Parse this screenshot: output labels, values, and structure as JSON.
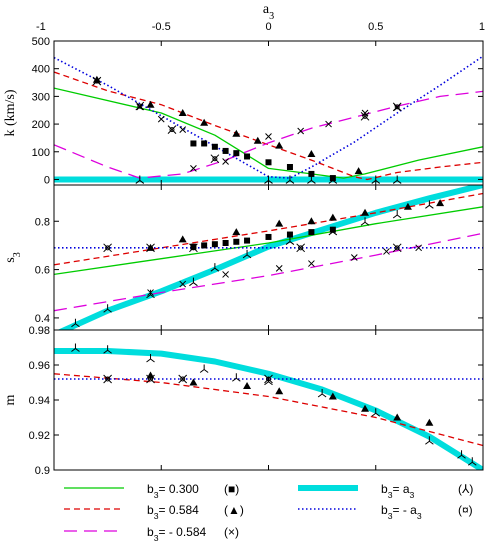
{
  "chart_data": {
    "type": "line",
    "top_axis": {
      "label": "a",
      "label_sub": "3",
      "ticks": [
        "-1",
        "-0.5",
        "0",
        "0.5",
        "1"
      ],
      "xlim": [
        -1,
        1
      ]
    },
    "panels": [
      {
        "ylabel": "k  (km/s)",
        "ylim": [
          -20,
          500
        ],
        "yticks": [
          0,
          100,
          200,
          300,
          400,
          500
        ],
        "ytick_labels": [
          "0",
          "100",
          "200",
          "300",
          "400",
          "500"
        ],
        "lines": [
          {
            "series": "s1",
            "points": [
              [
                -1,
                330
              ],
              [
                -0.5,
                240
              ],
              [
                -0.25,
                160
              ],
              [
                0,
                40
              ],
              [
                0.2,
                20
              ],
              [
                0.35,
                5
              ],
              [
                0.45,
                20
              ],
              [
                0.7,
                70
              ],
              [
                1,
                118
              ]
            ]
          },
          {
            "series": "s2",
            "points": [
              [
                -1,
                388
              ],
              [
                -0.75,
                320
              ],
              [
                -0.5,
                270
              ],
              [
                -0.25,
                195
              ],
              [
                0,
                125
              ],
              [
                0.2,
                70
              ],
              [
                0.3,
                40
              ],
              [
                0.4,
                10
              ],
              [
                0.46,
                0
              ],
              [
                0.6,
                25
              ],
              [
                0.8,
                45
              ],
              [
                1,
                62
              ]
            ]
          },
          {
            "series": "s3",
            "points": [
              [
                -1,
                125
              ],
              [
                -0.75,
                45
              ],
              [
                -0.6,
                5
              ],
              [
                -0.4,
                20
              ],
              [
                -0.2,
                70
              ],
              [
                0,
                132
              ],
              [
                0.2,
                185
              ],
              [
                0.4,
                225
              ],
              [
                0.6,
                265
              ],
              [
                0.8,
                300
              ],
              [
                1,
                318
              ]
            ]
          },
          {
            "series": "s4",
            "points": [
              [
                -1,
                0
              ],
              [
                1,
                0
              ]
            ]
          },
          {
            "series": "s5",
            "points": [
              [
                -1,
                440
              ],
              [
                -0.75,
                340
              ],
              [
                -0.5,
                230
              ],
              [
                -0.25,
                120
              ],
              [
                0,
                10
              ],
              [
                0.1,
                5
              ],
              [
                0.2,
                45
              ],
              [
                0.4,
                135
              ],
              [
                0.6,
                240
              ],
              [
                0.8,
                340
              ],
              [
                1,
                445
              ]
            ]
          }
        ],
        "markers": [
          {
            "series": "s1",
            "points": [
              [
                -0.35,
                130
              ],
              [
                -0.3,
                130
              ],
              [
                -0.25,
                118
              ],
              [
                -0.2,
                103
              ],
              [
                -0.15,
                95
              ],
              [
                -0.1,
                83
              ],
              [
                0,
                62
              ],
              [
                0.1,
                45
              ],
              [
                0.2,
                20
              ],
              [
                0.3,
                5
              ]
            ]
          },
          {
            "series": "s2",
            "points": [
              [
                -0.8,
                360
              ],
              [
                -0.55,
                270
              ],
              [
                -0.4,
                240
              ],
              [
                -0.3,
                205
              ],
              [
                -0.15,
                165
              ],
              [
                -0.05,
                140
              ],
              [
                0.05,
                122
              ],
              [
                0.2,
                92
              ],
              [
                0.42,
                30
              ]
            ]
          },
          {
            "series": "s3",
            "points": [
              [
                -0.8,
                355
              ],
              [
                -0.6,
                262
              ],
              [
                -0.5,
                218
              ],
              [
                -0.4,
                180
              ],
              [
                -0.35,
                40
              ],
              [
                -0.2,
                65
              ],
              [
                0,
                155
              ],
              [
                0.15,
                175
              ],
              [
                0.28,
                200
              ],
              [
                0.45,
                240
              ],
              [
                0.6,
                260
              ]
            ]
          },
          {
            "series": "s4",
            "points": [
              [
                -0.6,
                0
              ],
              [
                0,
                0
              ],
              [
                0.1,
                0
              ],
              [
                0.2,
                0
              ],
              [
                0.3,
                0
              ],
              [
                0.5,
                0
              ],
              [
                0.6,
                0
              ]
            ]
          },
          {
            "series": "s5",
            "points": [
              [
                -0.8,
                355
              ],
              [
                -0.6,
                265
              ],
              [
                -0.45,
                180
              ],
              [
                -0.25,
                75
              ],
              [
                0.45,
                228
              ],
              [
                0.6,
                262
              ]
            ]
          }
        ]
      },
      {
        "ylabel": "s",
        "ylabel_sub": "3",
        "ylim": [
          0.35,
          0.95
        ],
        "yticks": [
          0.4,
          0.6,
          0.8
        ],
        "ytick_labels": [
          "0.4",
          "0.6",
          "0.8"
        ],
        "lines": [
          {
            "series": "s1",
            "points": [
              [
                -1,
                0.58
              ],
              [
                -0.5,
                0.645
              ],
              [
                0,
                0.71
              ],
              [
                0.5,
                0.79
              ],
              [
                1,
                0.86
              ]
            ]
          },
          {
            "series": "s2",
            "points": [
              [
                -1,
                0.62
              ],
              [
                -0.5,
                0.69
              ],
              [
                0,
                0.76
              ],
              [
                0.5,
                0.835
              ],
              [
                1,
                0.915
              ]
            ]
          },
          {
            "series": "s3",
            "points": [
              [
                -1,
                0.43
              ],
              [
                -0.5,
                0.505
              ],
              [
                0,
                0.575
              ],
              [
                0.5,
                0.66
              ],
              [
                1,
                0.75
              ]
            ]
          },
          {
            "series": "s4",
            "points": [
              [
                -1,
                0.33
              ],
              [
                -0.75,
                0.43
              ],
              [
                -0.5,
                0.51
              ],
              [
                -0.25,
                0.6
              ],
              [
                0,
                0.695
              ],
              [
                0.25,
                0.765
              ],
              [
                0.5,
                0.835
              ],
              [
                0.75,
                0.895
              ],
              [
                1,
                0.95
              ]
            ]
          },
          {
            "series": "s5",
            "points": [
              [
                -1,
                0.69
              ],
              [
                1,
                0.69
              ]
            ]
          }
        ],
        "markers": [
          {
            "series": "s1",
            "points": [
              [
                -0.35,
                0.695
              ],
              [
                -0.3,
                0.7
              ],
              [
                -0.25,
                0.705
              ],
              [
                -0.2,
                0.71
              ],
              [
                -0.15,
                0.715
              ],
              [
                -0.1,
                0.72
              ],
              [
                0,
                0.735
              ],
              [
                0.1,
                0.745
              ],
              [
                0.2,
                0.755
              ],
              [
                0.3,
                0.765
              ]
            ]
          },
          {
            "series": "s2",
            "points": [
              [
                -0.55,
                0.69
              ],
              [
                -0.4,
                0.725
              ],
              [
                -0.15,
                0.755
              ],
              [
                0.05,
                0.79
              ],
              [
                0.2,
                0.8
              ],
              [
                0.3,
                0.815
              ],
              [
                0.45,
                0.835
              ],
              [
                0.65,
                0.86
              ],
              [
                0.8,
                0.875
              ]
            ]
          },
          {
            "series": "s3",
            "points": [
              [
                -0.55,
                0.505
              ],
              [
                -0.4,
                0.54
              ],
              [
                -0.2,
                0.58
              ],
              [
                0.05,
                0.605
              ],
              [
                0.2,
                0.625
              ],
              [
                0.4,
                0.65
              ],
              [
                0.55,
                0.675
              ],
              [
                0.7,
                0.69
              ]
            ]
          },
          {
            "series": "s4",
            "points": [
              [
                -0.9,
                0.38
              ],
              [
                -0.75,
                0.44
              ],
              [
                -0.55,
                0.5
              ],
              [
                -0.35,
                0.55
              ],
              [
                -0.25,
                0.61
              ],
              [
                -0.1,
                0.665
              ],
              [
                0.1,
                0.72
              ],
              [
                0.3,
                0.76
              ],
              [
                0.45,
                0.8
              ],
              [
                0.6,
                0.83
              ],
              [
                0.75,
                0.87
              ]
            ]
          },
          {
            "series": "s5",
            "points": [
              [
                -0.75,
                0.69
              ],
              [
                -0.55,
                0.69
              ],
              [
                -0.35,
                0.69
              ],
              [
                0.15,
                0.69
              ],
              [
                0.6,
                0.69
              ]
            ]
          }
        ]
      },
      {
        "ylabel": "m",
        "ylim": [
          0.9,
          0.98
        ],
        "yticks": [
          0.9,
          0.92,
          0.94,
          0.96,
          0.98
        ],
        "ytick_labels": [
          "0.9",
          "0.92",
          "0.94",
          "0.96",
          "0.98"
        ],
        "lines": [
          {
            "series": "s2",
            "points": [
              [
                -1,
                0.955
              ],
              [
                -0.5,
                0.95
              ],
              [
                0,
                0.942
              ],
              [
                0.5,
                0.93
              ],
              [
                1,
                0.914
              ]
            ]
          },
          {
            "series": "s4",
            "points": [
              [
                -1,
                0.968
              ],
              [
                -0.75,
                0.968
              ],
              [
                -0.5,
                0.9665
              ],
              [
                -0.25,
                0.962
              ],
              [
                0,
                0.955
              ],
              [
                0.25,
                0.946
              ],
              [
                0.5,
                0.934
              ],
              [
                0.75,
                0.919
              ],
              [
                1,
                0.9
              ]
            ]
          },
          {
            "series": "s5",
            "points": [
              [
                -1,
                0.952
              ],
              [
                1,
                0.952
              ]
            ]
          }
        ],
        "markers": [
          {
            "series": "s2",
            "points": [
              [
                -0.55,
                0.954
              ],
              [
                -0.35,
                0.95
              ],
              [
                -0.1,
                0.948
              ],
              [
                0.05,
                0.945
              ],
              [
                0.3,
                0.942
              ],
              [
                0.45,
                0.935
              ],
              [
                0.6,
                0.93
              ],
              [
                0.75,
                0.927
              ]
            ]
          },
          {
            "series": "s4",
            "points": [
              [
                -0.9,
                0.97
              ],
              [
                -0.75,
                0.969
              ],
              [
                -0.55,
                0.964
              ],
              [
                -0.3,
                0.958
              ],
              [
                -0.15,
                0.953
              ],
              [
                0,
                0.951
              ],
              [
                0.25,
                0.944
              ],
              [
                0.5,
                0.933
              ],
              [
                0.75,
                0.917
              ],
              [
                0.9,
                0.909
              ],
              [
                0.95,
                0.905
              ]
            ]
          },
          {
            "series": "s5",
            "points": [
              [
                -0.75,
                0.952
              ],
              [
                -0.55,
                0.952
              ],
              [
                -0.4,
                0.952
              ],
              [
                0,
                0.952
              ]
            ]
          }
        ]
      }
    ],
    "series": [
      {
        "id": "s1",
        "label": "b",
        "label_sub": "3",
        "label_rest": "= 0.300",
        "symbol": "(■)",
        "marker": "square",
        "color": "#00cc00",
        "dash": "none",
        "width": 1.3
      },
      {
        "id": "s2",
        "label": "b",
        "label_sub": "3",
        "label_rest": "= 0.584",
        "symbol": "(▲)",
        "marker": "triangle",
        "color": "#dd0000",
        "dash": "6 4",
        "width": 1.3
      },
      {
        "id": "s3",
        "label": "b",
        "label_sub": "3",
        "label_rest": "= - 0.584",
        "symbol": "(×)",
        "marker": "cross",
        "color": "#dd00dd",
        "dash": "13 7",
        "width": 1.3
      },
      {
        "id": "s4",
        "label": "b",
        "label_sub": "3",
        "label_rest": "= a",
        "label_sub2": "3",
        "symbol": "(⅄)",
        "marker": "tripod",
        "color": "#00dddd",
        "dash": "none",
        "width": 6
      },
      {
        "id": "s5",
        "label": "b",
        "label_sub": "3",
        "label_rest": "= - a",
        "label_sub2": "3",
        "symbol": "(¤)",
        "marker": "star",
        "color": "#0000dd",
        "dash": "1.5 2.5",
        "width": 1.6
      }
    ]
  }
}
